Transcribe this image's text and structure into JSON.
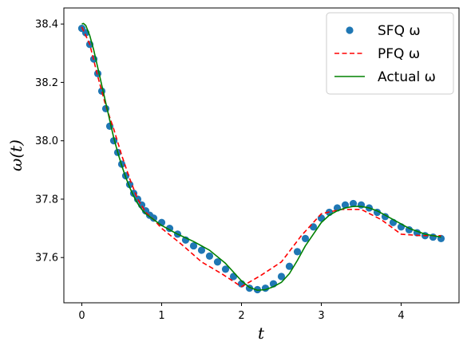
{
  "chart_data": {
    "type": "line",
    "title": "",
    "xlabel": "t",
    "ylabel": "ω(t)",
    "xlim": [
      -0.225,
      4.725
    ],
    "ylim": [
      37.445,
      38.455
    ],
    "xticks": [
      0,
      1,
      2,
      3,
      4
    ],
    "yticks": [
      37.6,
      37.8,
      38.0,
      38.2,
      38.4
    ],
    "xtick_labels": [
      "0",
      "1",
      "2",
      "3",
      "4"
    ],
    "ytick_labels": [
      "37.6",
      "37.8",
      "38.0",
      "38.2",
      "38.4"
    ],
    "grid": false,
    "legend_position": "top-right",
    "series": [
      {
        "name": "SFQ ω",
        "style": "markers",
        "color": "#1f77b4",
        "x": [
          0.0,
          0.05,
          0.1,
          0.15,
          0.2,
          0.25,
          0.3,
          0.35,
          0.4,
          0.45,
          0.5,
          0.55,
          0.6,
          0.65,
          0.7,
          0.75,
          0.8,
          0.85,
          0.9,
          1.0,
          1.1,
          1.2,
          1.3,
          1.4,
          1.5,
          1.6,
          1.7,
          1.8,
          1.9,
          2.0,
          2.1,
          2.2,
          2.3,
          2.4,
          2.5,
          2.6,
          2.7,
          2.8,
          2.9,
          3.0,
          3.1,
          3.2,
          3.3,
          3.4,
          3.5,
          3.6,
          3.7,
          3.8,
          3.9,
          4.0,
          4.1,
          4.2,
          4.3,
          4.4,
          4.5
        ],
        "y": [
          38.385,
          38.37,
          38.33,
          38.28,
          38.23,
          38.17,
          38.11,
          38.05,
          38.0,
          37.96,
          37.92,
          37.88,
          37.85,
          37.82,
          37.8,
          37.78,
          37.76,
          37.745,
          37.735,
          37.72,
          37.7,
          37.68,
          37.66,
          37.64,
          37.625,
          37.605,
          37.585,
          37.56,
          37.535,
          37.51,
          37.495,
          37.49,
          37.495,
          37.51,
          37.535,
          37.57,
          37.62,
          37.665,
          37.705,
          37.735,
          37.755,
          37.77,
          37.78,
          37.785,
          37.78,
          37.77,
          37.755,
          37.74,
          37.72,
          37.705,
          37.695,
          37.685,
          37.675,
          37.67,
          37.665
        ]
      },
      {
        "name": "PFQ ω",
        "style": "dashed",
        "color": "#ff0000",
        "x": [
          0.0,
          0.1,
          0.2,
          0.3,
          0.4,
          0.5,
          0.6,
          0.7,
          0.8,
          0.9,
          1.0,
          1.25,
          1.5,
          1.75,
          2.0,
          2.25,
          2.5,
          2.75,
          3.0,
          3.25,
          3.5,
          3.75,
          4.0,
          4.25,
          4.5
        ],
        "y": [
          38.39,
          38.33,
          38.22,
          38.12,
          38.04,
          37.95,
          37.87,
          37.8,
          37.755,
          37.73,
          37.7,
          37.645,
          37.585,
          37.545,
          37.5,
          37.54,
          37.585,
          37.675,
          37.75,
          37.765,
          37.765,
          37.73,
          37.68,
          37.675,
          37.675
        ]
      },
      {
        "name": "Actual ω",
        "style": "solid",
        "color": "#008000",
        "x": [
          0.0,
          0.02,
          0.05,
          0.1,
          0.15,
          0.2,
          0.25,
          0.3,
          0.35,
          0.4,
          0.45,
          0.5,
          0.55,
          0.6,
          0.65,
          0.7,
          0.75,
          0.8,
          0.9,
          1.0,
          1.2,
          1.4,
          1.6,
          1.8,
          2.0,
          2.1,
          2.2,
          2.3,
          2.4,
          2.5,
          2.6,
          2.7,
          2.8,
          2.9,
          3.0,
          3.1,
          3.2,
          3.3,
          3.4,
          3.5,
          3.6,
          3.7,
          3.8,
          3.9,
          4.0,
          4.1,
          4.2,
          4.3,
          4.4,
          4.5
        ],
        "y": [
          38.4,
          38.402,
          38.395,
          38.36,
          38.31,
          38.25,
          38.19,
          38.13,
          38.07,
          38.01,
          37.96,
          37.915,
          37.875,
          37.84,
          37.81,
          37.785,
          37.765,
          37.75,
          37.73,
          37.71,
          37.68,
          37.655,
          37.625,
          37.58,
          37.52,
          37.498,
          37.488,
          37.49,
          37.5,
          37.515,
          37.545,
          37.59,
          37.64,
          37.68,
          37.72,
          37.745,
          37.76,
          37.77,
          37.775,
          37.775,
          37.77,
          37.76,
          37.745,
          37.73,
          37.715,
          37.7,
          37.69,
          37.68,
          37.675,
          37.67
        ]
      }
    ]
  }
}
